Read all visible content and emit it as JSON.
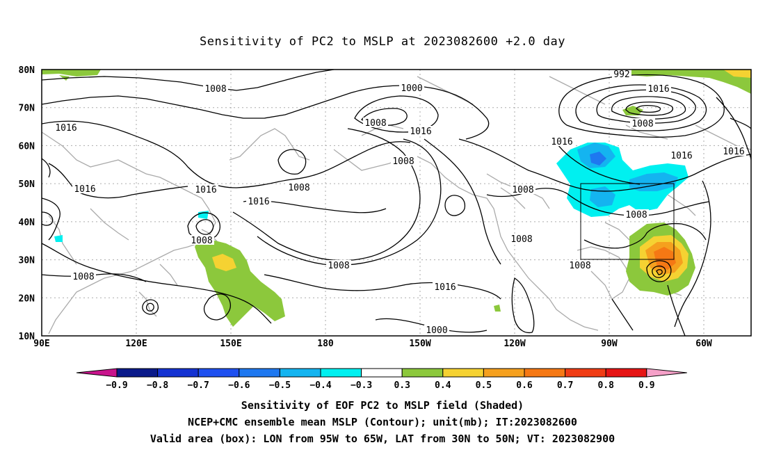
{
  "title": "Sensitivity of PC2 to MSLP at 2023082600 +2.0 day",
  "map": {
    "lat_labels": [
      "80N",
      "70N",
      "60N",
      "50N",
      "40N",
      "30N",
      "20N",
      "10N"
    ],
    "lon_labels": [
      "90E",
      "120E",
      "150E",
      "180",
      "150W",
      "120W",
      "90W",
      "60W"
    ],
    "contour_labels": [
      {
        "text": "1008"
      },
      {
        "text": "1016"
      },
      {
        "text": "1016"
      },
      {
        "text": "1016"
      },
      {
        "text": "1008"
      },
      {
        "text": "1008"
      },
      {
        "text": "1008"
      },
      {
        "text": "1000"
      },
      {
        "text": "1008"
      },
      {
        "text": "1016"
      },
      {
        "text": "1008"
      },
      {
        "text": "1016"
      },
      {
        "text": "1008"
      },
      {
        "text": "1016"
      },
      {
        "text": "1000"
      },
      {
        "text": "992"
      },
      {
        "text": "1016"
      },
      {
        "text": "1008"
      },
      {
        "text": "1016"
      },
      {
        "text": "1016"
      },
      {
        "text": "1016"
      },
      {
        "text": "1008"
      },
      {
        "text": "1008"
      },
      {
        "text": "1008"
      },
      {
        "text": "1008"
      }
    ],
    "valid_box": {
      "lon_from": "95W",
      "lon_to": "65W",
      "lat_from": "30N",
      "lat_to": "50N"
    }
  },
  "colorbar": {
    "labels": [
      "-0.9",
      "-0.8",
      "-0.7",
      "-0.6",
      "-0.5",
      "-0.4",
      "-0.3",
      "0.3",
      "0.4",
      "0.5",
      "0.6",
      "0.7",
      "0.8",
      "0.9"
    ],
    "colors": [
      "#0a1a8a",
      "#1432d2",
      "#1e50f0",
      "#1e78f0",
      "#14b4f0",
      "#00f0f0",
      "#ffffff",
      "#8cc83c",
      "#f5d232",
      "#f5a01e",
      "#f57814",
      "#f03c14",
      "#e61414"
    ],
    "low_color": "#c8148c",
    "high_color": "#f5a0c8"
  },
  "footer": {
    "line1": "Sensitivity of EOF PC2 to MSLP field (Shaded)",
    "line2": "NCEP+CMC ensemble mean MSLP (Contour); unit(mb); IT:2023082600",
    "line3": "Valid area (box): LON from 95W to 65W, LAT from 30N to 50N; VT: 2023082900"
  }
}
